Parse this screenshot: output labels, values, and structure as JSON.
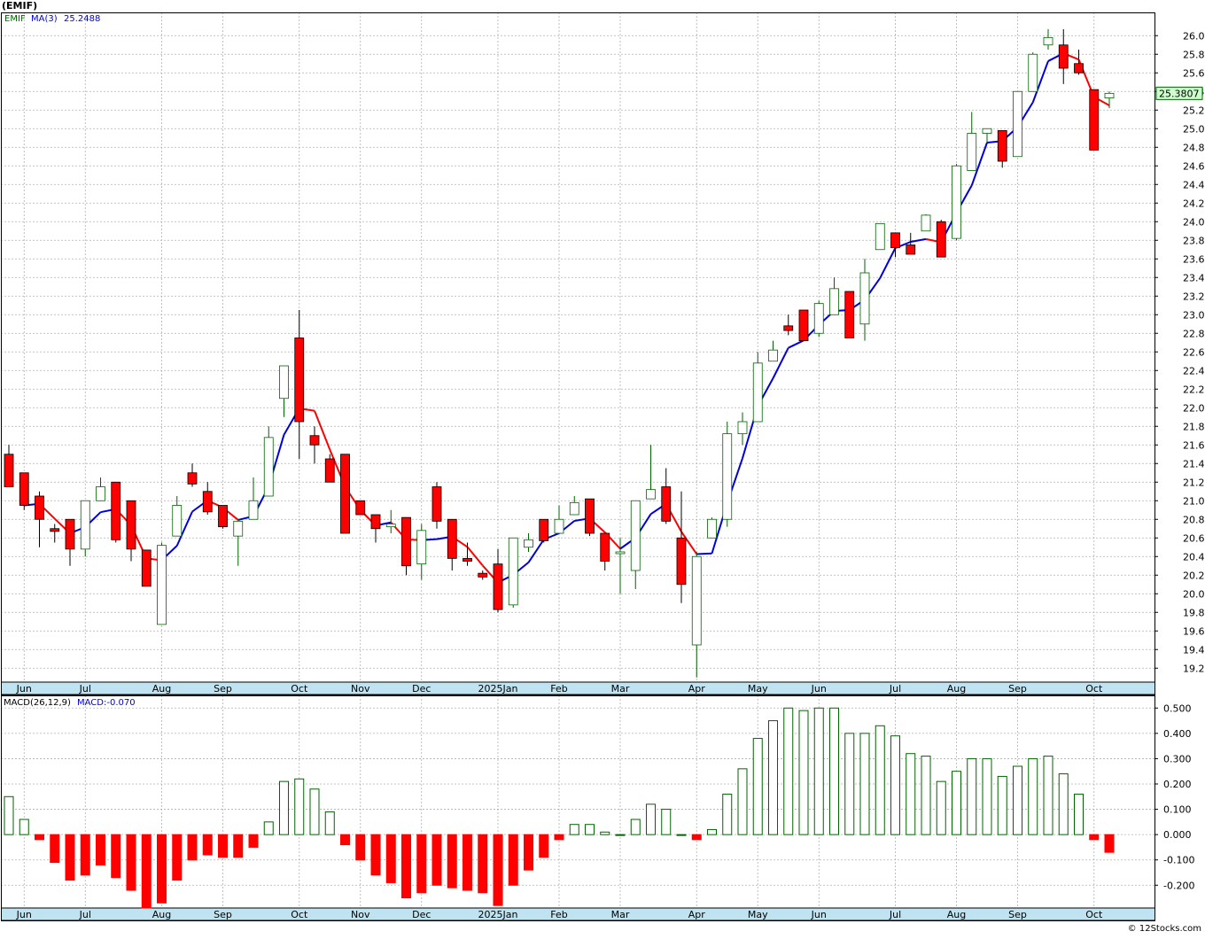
{
  "header": {
    "symbol_title": "(EMIF)",
    "legend_symbol": "EMIF",
    "legend_ma": "MA(3)",
    "legend_ma_value": "25.2488",
    "last_price": "25.3807"
  },
  "macd_panel": {
    "legend_label": "MACD(26,12,9)",
    "legend_value": "MACD:-0.070"
  },
  "footer": {
    "credit": "© 12Stocks.com"
  },
  "colors": {
    "up_candle": "#006400",
    "down_candle": "#ff0000",
    "ma_up": "#0000dd",
    "ma_down": "#ff0000",
    "grid": "#b0b0b0",
    "axis_strip": "#bfe3f0",
    "price_tag_bg": "#ccffcc"
  },
  "chart_data": [
    {
      "type": "candlestick",
      "title": "(EMIF)",
      "interval": "weekly",
      "price_axis_ticks": [
        "26.0000",
        "25.8000",
        "25.6000",
        "25.4000",
        "25.2000",
        "25.0000",
        "24.8000",
        "24.6000",
        "24.4000",
        "24.2000",
        "24.0000",
        "23.8000",
        "23.6000",
        "23.4000",
        "23.2000",
        "23.0000",
        "22.8000",
        "22.6000",
        "22.4000",
        "22.2000",
        "22.0000",
        "21.8000",
        "21.6000",
        "21.4000",
        "21.2000",
        "21.0000",
        "20.8000",
        "20.6000",
        "20.4000",
        "20.2000",
        "20.0000",
        "19.8000",
        "19.6000",
        "19.4000",
        "19.2000"
      ],
      "ylim": [
        19.05,
        26.25
      ],
      "month_labels": [
        {
          "label": "Jun",
          "week": 1
        },
        {
          "label": "Jul",
          "week": 5
        },
        {
          "label": "Aug",
          "week": 10
        },
        {
          "label": "Sep",
          "week": 14
        },
        {
          "label": "Oct",
          "week": 19
        },
        {
          "label": "Nov",
          "week": 23
        },
        {
          "label": "Dec",
          "week": 27
        },
        {
          "label": "2025Jan",
          "week": 32
        },
        {
          "label": "Feb",
          "week": 36
        },
        {
          "label": "Mar",
          "week": 40
        },
        {
          "label": "Apr",
          "week": 45
        },
        {
          "label": "May",
          "week": 49
        },
        {
          "label": "Jun",
          "week": 53
        },
        {
          "label": "Jul",
          "week": 58
        },
        {
          "label": "Aug",
          "week": 62
        },
        {
          "label": "Sep",
          "week": 66
        },
        {
          "label": "Oct",
          "week": 71
        }
      ],
      "ma_period": 3,
      "candles": [
        {
          "o": 21.5,
          "h": 21.6,
          "l": 21.15,
          "c": 21.15
        },
        {
          "o": 21.3,
          "h": 21.3,
          "l": 20.9,
          "c": 20.95
        },
        {
          "o": 21.05,
          "h": 21.1,
          "l": 20.5,
          "c": 20.8
        },
        {
          "o": 20.7,
          "h": 20.75,
          "l": 20.55,
          "c": 20.67
        },
        {
          "o": 20.8,
          "h": 20.8,
          "l": 20.3,
          "c": 20.48
        },
        {
          "o": 20.48,
          "h": 21.0,
          "l": 20.4,
          "c": 21.0
        },
        {
          "o": 21.0,
          "h": 21.25,
          "l": 21.0,
          "c": 21.15
        },
        {
          "o": 21.2,
          "h": 21.2,
          "l": 20.55,
          "c": 20.58
        },
        {
          "o": 21.0,
          "h": 21.0,
          "l": 20.35,
          "c": 20.48
        },
        {
          "o": 20.47,
          "h": 20.47,
          "l": 20.08,
          "c": 20.08
        },
        {
          "o": 19.67,
          "h": 20.55,
          "l": 19.67,
          "c": 20.52
        },
        {
          "o": 20.62,
          "h": 21.05,
          "l": 20.62,
          "c": 20.95
        },
        {
          "o": 21.3,
          "h": 21.4,
          "l": 21.15,
          "c": 21.18
        },
        {
          "o": 21.1,
          "h": 21.2,
          "l": 20.85,
          "c": 20.88
        },
        {
          "o": 20.95,
          "h": 20.95,
          "l": 20.7,
          "c": 20.72
        },
        {
          "o": 20.62,
          "h": 20.8,
          "l": 20.3,
          "c": 20.78
        },
        {
          "o": 20.8,
          "h": 21.25,
          "l": 20.8,
          "c": 21.0
        },
        {
          "o": 21.05,
          "h": 21.8,
          "l": 21.05,
          "c": 21.68
        },
        {
          "o": 22.1,
          "h": 22.45,
          "l": 21.9,
          "c": 22.45
        },
        {
          "o": 22.75,
          "h": 23.05,
          "l": 21.45,
          "c": 21.85
        },
        {
          "o": 21.7,
          "h": 21.8,
          "l": 21.4,
          "c": 21.6
        },
        {
          "o": 21.45,
          "h": 21.5,
          "l": 21.2,
          "c": 21.2
        },
        {
          "o": 21.5,
          "h": 21.5,
          "l": 20.65,
          "c": 20.65
        },
        {
          "o": 21.0,
          "h": 21.0,
          "l": 20.85,
          "c": 20.85
        },
        {
          "o": 20.85,
          "h": 20.85,
          "l": 20.55,
          "c": 20.7
        },
        {
          "o": 20.72,
          "h": 20.9,
          "l": 20.65,
          "c": 20.75
        },
        {
          "o": 20.82,
          "h": 20.82,
          "l": 20.2,
          "c": 20.3
        },
        {
          "o": 20.32,
          "h": 20.75,
          "l": 20.15,
          "c": 20.68
        },
        {
          "o": 21.15,
          "h": 21.2,
          "l": 20.7,
          "c": 20.78
        },
        {
          "o": 20.8,
          "h": 20.8,
          "l": 20.25,
          "c": 20.38
        },
        {
          "o": 20.38,
          "h": 20.55,
          "l": 20.3,
          "c": 20.35
        },
        {
          "o": 20.22,
          "h": 20.25,
          "l": 20.15,
          "c": 20.18
        },
        {
          "o": 20.32,
          "h": 20.48,
          "l": 19.8,
          "c": 19.83
        },
        {
          "o": 19.88,
          "h": 20.6,
          "l": 19.85,
          "c": 20.6
        },
        {
          "o": 20.5,
          "h": 20.65,
          "l": 20.45,
          "c": 20.58
        },
        {
          "o": 20.8,
          "h": 20.8,
          "l": 20.55,
          "c": 20.57
        },
        {
          "o": 20.65,
          "h": 20.95,
          "l": 20.65,
          "c": 20.8
        },
        {
          "o": 20.85,
          "h": 21.05,
          "l": 20.85,
          "c": 20.98
        },
        {
          "o": 21.02,
          "h": 21.02,
          "l": 20.62,
          "c": 20.65
        },
        {
          "o": 20.65,
          "h": 20.65,
          "l": 20.25,
          "c": 20.35
        },
        {
          "o": 20.45,
          "h": 20.6,
          "l": 20.0,
          "c": 20.45
        },
        {
          "o": 20.25,
          "h": 21.0,
          "l": 20.05,
          "c": 21.0
        },
        {
          "o": 21.02,
          "h": 21.6,
          "l": 21.02,
          "c": 21.12
        },
        {
          "o": 21.15,
          "h": 21.35,
          "l": 20.75,
          "c": 20.78
        },
        {
          "o": 20.6,
          "h": 21.1,
          "l": 19.9,
          "c": 20.1
        },
        {
          "o": 19.45,
          "h": 20.45,
          "l": 19.1,
          "c": 20.4
        },
        {
          "o": 20.6,
          "h": 20.82,
          "l": 20.6,
          "c": 20.8
        },
        {
          "o": 20.8,
          "h": 21.85,
          "l": 20.72,
          "c": 21.72
        },
        {
          "o": 21.72,
          "h": 21.95,
          "l": 21.6,
          "c": 21.85
        },
        {
          "o": 21.85,
          "h": 22.6,
          "l": 21.85,
          "c": 22.48
        },
        {
          "o": 22.5,
          "h": 22.72,
          "l": 22.5,
          "c": 22.62
        },
        {
          "o": 22.88,
          "h": 23.0,
          "l": 22.78,
          "c": 22.83
        },
        {
          "o": 23.05,
          "h": 23.05,
          "l": 22.72,
          "c": 22.72
        },
        {
          "o": 22.8,
          "h": 23.15,
          "l": 22.76,
          "c": 23.12
        },
        {
          "o": 23.0,
          "h": 23.4,
          "l": 23.0,
          "c": 23.28
        },
        {
          "o": 23.25,
          "h": 23.25,
          "l": 22.75,
          "c": 22.75
        },
        {
          "o": 22.9,
          "h": 23.6,
          "l": 22.72,
          "c": 23.45
        },
        {
          "o": 23.7,
          "h": 23.98,
          "l": 23.7,
          "c": 23.98
        },
        {
          "o": 23.88,
          "h": 23.88,
          "l": 23.62,
          "c": 23.72
        },
        {
          "o": 23.75,
          "h": 23.88,
          "l": 23.65,
          "c": 23.65
        },
        {
          "o": 23.9,
          "h": 24.08,
          "l": 23.9,
          "c": 24.07
        },
        {
          "o": 24.0,
          "h": 24.02,
          "l": 23.62,
          "c": 23.62
        },
        {
          "o": 23.82,
          "h": 24.62,
          "l": 23.8,
          "c": 24.6
        },
        {
          "o": 24.55,
          "h": 25.18,
          "l": 24.55,
          "c": 24.95
        },
        {
          "o": 24.95,
          "h": 25.0,
          "l": 24.85,
          "c": 25.0
        },
        {
          "o": 24.98,
          "h": 24.98,
          "l": 24.58,
          "c": 24.65
        },
        {
          "o": 24.7,
          "h": 25.4,
          "l": 24.7,
          "c": 25.4
        },
        {
          "o": 25.4,
          "h": 25.82,
          "l": 25.4,
          "c": 25.8
        },
        {
          "o": 25.9,
          "h": 26.07,
          "l": 25.85,
          "c": 25.98
        },
        {
          "o": 25.9,
          "h": 26.07,
          "l": 25.48,
          "c": 25.65
        },
        {
          "o": 25.7,
          "h": 25.85,
          "l": 25.58,
          "c": 25.6
        },
        {
          "o": 25.42,
          "h": 25.42,
          "l": 24.77,
          "c": 24.77
        },
        {
          "o": 25.33,
          "h": 25.4,
          "l": 25.22,
          "c": 25.38
        }
      ]
    },
    {
      "type": "bar",
      "title": "MACD(26,12,9)",
      "axis_ticks": [
        "0.500",
        "0.400",
        "0.300",
        "0.200",
        "0.100",
        "0.000",
        "-0.100",
        "-0.200"
      ],
      "ylim": [
        -0.29,
        0.55
      ],
      "values": [
        0.15,
        0.06,
        -0.02,
        -0.11,
        -0.18,
        -0.16,
        -0.12,
        -0.17,
        -0.22,
        -0.29,
        -0.27,
        -0.18,
        -0.1,
        -0.08,
        -0.09,
        -0.09,
        -0.05,
        0.05,
        0.21,
        0.22,
        0.18,
        0.09,
        -0.04,
        -0.1,
        -0.16,
        -0.19,
        -0.25,
        -0.23,
        -0.2,
        -0.21,
        -0.22,
        -0.23,
        -0.28,
        -0.2,
        -0.14,
        -0.09,
        -0.02,
        0.04,
        0.04,
        0.01,
        0.0,
        0.06,
        0.12,
        0.1,
        0.0,
        -0.02,
        0.02,
        0.16,
        0.26,
        0.38,
        0.45,
        0.5,
        0.49,
        0.5,
        0.5,
        0.4,
        0.4,
        0.43,
        0.39,
        0.32,
        0.31,
        0.21,
        0.25,
        0.3,
        0.3,
        0.23,
        0.27,
        0.3,
        0.31,
        0.24,
        0.16,
        -0.02,
        -0.07
      ]
    }
  ]
}
